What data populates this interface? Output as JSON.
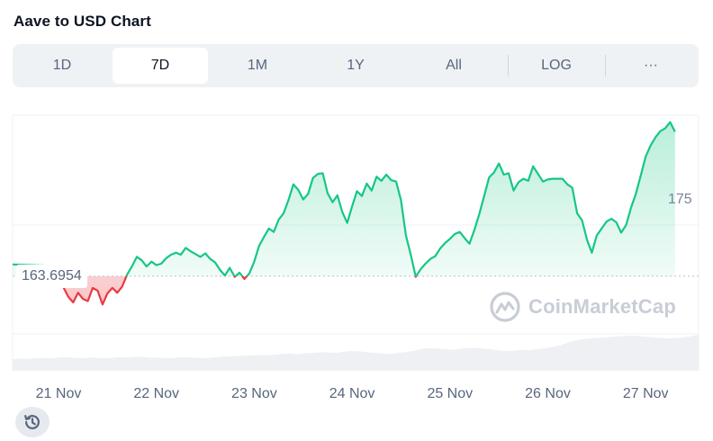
{
  "title": "Aave to USD Chart",
  "tabs": [
    {
      "label": "1D"
    },
    {
      "label": "7D"
    },
    {
      "label": "1M"
    },
    {
      "label": "1Y"
    },
    {
      "label": "All"
    },
    {
      "label": "LOG"
    },
    {
      "label": "···"
    }
  ],
  "active_tab": "7D",
  "watermark": "CoinMarketCap",
  "icons": {
    "logo": "coinmarketcap-logo-icon",
    "history": "history-icon"
  },
  "colors": {
    "up": "#16c784",
    "down": "#ea3943",
    "axis_text": "#58667e"
  },
  "chart_data": {
    "type": "area",
    "title": "Aave to USD Chart",
    "xlabel": "",
    "ylabel": "",
    "x_ticks": [
      "21 Nov",
      "22 Nov",
      "23 Nov",
      "24 Nov",
      "25 Nov",
      "26 Nov",
      "27 Nov"
    ],
    "reference_value": "163.6954",
    "reference_line": 163.6954,
    "y_tick_label": "175",
    "ylim": [
      150,
      187
    ],
    "grid": true,
    "series": [
      {
        "values": [
          [
            20.95,
            165.2
          ],
          [
            21.0,
            163.9
          ],
          [
            21.05,
            162.1
          ],
          [
            21.1,
            160.7
          ],
          [
            21.15,
            159.9
          ],
          [
            21.2,
            161.3
          ],
          [
            21.25,
            160.4
          ],
          [
            21.3,
            160.1
          ],
          [
            21.35,
            162.0
          ],
          [
            21.4,
            161.6
          ],
          [
            21.45,
            159.6
          ],
          [
            21.5,
            161.2
          ],
          [
            21.55,
            162.0
          ],
          [
            21.6,
            161.3
          ],
          [
            21.65,
            162.2
          ],
          [
            21.7,
            163.9
          ],
          [
            21.75,
            165.1
          ],
          [
            21.8,
            166.5
          ],
          [
            21.85,
            166.0
          ],
          [
            21.9,
            165.1
          ],
          [
            21.95,
            165.8
          ],
          [
            22.0,
            165.3
          ],
          [
            22.05,
            165.5
          ],
          [
            22.1,
            166.3
          ],
          [
            22.15,
            166.8
          ],
          [
            22.2,
            167.1
          ],
          [
            22.25,
            166.8
          ],
          [
            22.3,
            167.8
          ],
          [
            22.35,
            167.3
          ],
          [
            22.4,
            166.9
          ],
          [
            22.45,
            166.5
          ],
          [
            22.5,
            167.0
          ],
          [
            22.55,
            166.2
          ],
          [
            22.6,
            165.7
          ],
          [
            22.65,
            164.6
          ],
          [
            22.7,
            163.8
          ],
          [
            22.75,
            164.9
          ],
          [
            22.8,
            163.6
          ],
          [
            22.85,
            164.2
          ],
          [
            22.9,
            163.3
          ],
          [
            22.95,
            164.1
          ],
          [
            23.0,
            165.8
          ],
          [
            23.05,
            168.1
          ],
          [
            23.1,
            169.4
          ],
          [
            23.15,
            170.6
          ],
          [
            23.2,
            170.1
          ],
          [
            23.25,
            171.9
          ],
          [
            23.3,
            172.8
          ],
          [
            23.35,
            174.7
          ],
          [
            23.4,
            177.0
          ],
          [
            23.45,
            176.2
          ],
          [
            23.5,
            174.8
          ],
          [
            23.55,
            175.6
          ],
          [
            23.6,
            177.9
          ],
          [
            23.65,
            178.5
          ],
          [
            23.7,
            178.6
          ],
          [
            23.75,
            175.7
          ],
          [
            23.8,
            174.4
          ],
          [
            23.85,
            175.4
          ],
          [
            23.9,
            173.0
          ],
          [
            23.95,
            171.4
          ],
          [
            24.0,
            173.8
          ],
          [
            24.05,
            176.0
          ],
          [
            24.1,
            175.3
          ],
          [
            24.15,
            177.1
          ],
          [
            24.2,
            176.1
          ],
          [
            24.25,
            178.1
          ],
          [
            24.3,
            177.5
          ],
          [
            24.35,
            178.4
          ],
          [
            24.4,
            177.6
          ],
          [
            24.45,
            177.4
          ],
          [
            24.5,
            174.7
          ],
          [
            24.55,
            169.6
          ],
          [
            24.6,
            166.8
          ],
          [
            24.65,
            163.6
          ],
          [
            24.7,
            164.7
          ],
          [
            24.75,
            165.5
          ],
          [
            24.8,
            166.2
          ],
          [
            24.85,
            166.6
          ],
          [
            24.9,
            167.7
          ],
          [
            24.95,
            168.5
          ],
          [
            25.0,
            169.1
          ],
          [
            25.05,
            169.8
          ],
          [
            25.1,
            170.1
          ],
          [
            25.15,
            169.2
          ],
          [
            25.2,
            168.4
          ],
          [
            25.25,
            170.4
          ],
          [
            25.3,
            172.7
          ],
          [
            25.35,
            175.3
          ],
          [
            25.4,
            178.0
          ],
          [
            25.45,
            178.7
          ],
          [
            25.5,
            180.0
          ],
          [
            25.55,
            178.4
          ],
          [
            25.6,
            178.6
          ],
          [
            25.65,
            176.1
          ],
          [
            25.7,
            177.3
          ],
          [
            25.75,
            177.8
          ],
          [
            25.8,
            177.5
          ],
          [
            25.85,
            179.6
          ],
          [
            25.9,
            178.5
          ],
          [
            25.95,
            177.4
          ],
          [
            26.0,
            177.7
          ],
          [
            26.05,
            177.8
          ],
          [
            26.1,
            177.8
          ],
          [
            26.15,
            177.8
          ],
          [
            26.2,
            177.0
          ],
          [
            26.25,
            176.5
          ],
          [
            26.3,
            172.8
          ],
          [
            26.35,
            171.8
          ],
          [
            26.4,
            169.0
          ],
          [
            26.45,
            167.1
          ],
          [
            26.5,
            169.6
          ],
          [
            26.55,
            170.6
          ],
          [
            26.6,
            171.6
          ],
          [
            26.65,
            172.0
          ],
          [
            26.7,
            171.5
          ],
          [
            26.75,
            170.0
          ],
          [
            26.8,
            171.1
          ],
          [
            26.85,
            173.6
          ],
          [
            26.9,
            175.6
          ],
          [
            26.95,
            178.3
          ],
          [
            27.0,
            181.0
          ],
          [
            27.05,
            182.6
          ],
          [
            27.1,
            183.8
          ],
          [
            27.15,
            184.7
          ],
          [
            27.2,
            185.1
          ],
          [
            27.25,
            186.0
          ],
          [
            27.3,
            184.6
          ]
        ]
      }
    ],
    "volume_series": [
      0.32,
      0.34,
      0.33,
      0.35,
      0.36,
      0.34,
      0.37,
      0.38,
      0.36,
      0.35,
      0.37,
      0.36,
      0.35,
      0.36,
      0.38,
      0.37,
      0.39,
      0.38,
      0.36,
      0.37,
      0.35,
      0.36,
      0.38,
      0.37,
      0.36,
      0.35,
      0.37,
      0.39,
      0.4,
      0.41,
      0.42,
      0.43,
      0.44,
      0.43,
      0.45,
      0.47,
      0.48,
      0.46,
      0.49,
      0.5,
      0.52,
      0.51,
      0.5,
      0.53,
      0.55,
      0.54,
      0.52,
      0.5,
      0.48,
      0.47,
      0.5,
      0.52,
      0.55,
      0.6,
      0.63,
      0.62,
      0.6,
      0.58,
      0.61,
      0.63,
      0.64,
      0.62,
      0.6,
      0.57,
      0.55,
      0.56,
      0.58,
      0.57,
      0.6,
      0.62,
      0.66,
      0.7,
      0.78,
      0.84,
      0.88,
      0.9,
      0.92,
      0.93,
      0.95,
      0.96,
      0.98,
      0.97,
      0.95,
      0.93,
      0.92,
      0.9,
      0.91,
      0.93,
      0.96,
      1.0
    ]
  }
}
